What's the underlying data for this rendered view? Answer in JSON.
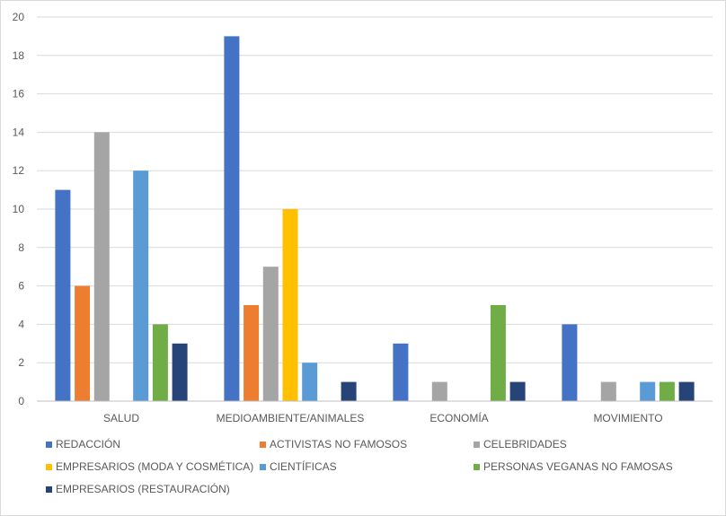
{
  "chart_data": {
    "type": "bar",
    "title": "",
    "xlabel": "",
    "ylabel": "",
    "ylim": [
      0,
      20
    ],
    "yticks": [
      0,
      2,
      4,
      6,
      8,
      10,
      12,
      14,
      16,
      18,
      20
    ],
    "grid": true,
    "legend_position": "bottom",
    "categories": [
      "SALUD",
      "MEDIOAMBIENTE/ANIMALES",
      "ECONOMÍA",
      "MOVIMIENTO"
    ],
    "series": [
      {
        "name": "REDACCIÓN",
        "color": "#4472C4",
        "values": [
          11,
          19,
          3,
          4
        ]
      },
      {
        "name": "ACTIVISTAS NO FAMOSOS",
        "color": "#ED7D31",
        "values": [
          6,
          5,
          0,
          0
        ]
      },
      {
        "name": "CELEBRIDADES",
        "color": "#A5A5A5",
        "values": [
          14,
          7,
          1,
          1
        ]
      },
      {
        "name": "EMPRESARIOS (MODA Y COSMÉTICA)",
        "color": "#FFC000",
        "values": [
          0,
          10,
          0,
          0
        ]
      },
      {
        "name": "CIENTÍFICAS",
        "color": "#5B9BD5",
        "values": [
          12,
          2,
          0,
          1
        ]
      },
      {
        "name": "PERSONAS VEGANAS NO FAMOSAS",
        "color": "#70AD47",
        "values": [
          4,
          0,
          5,
          1
        ]
      },
      {
        "name": "EMPRESARIOS (RESTAURACIÓN)",
        "color": "#264478",
        "values": [
          3,
          1,
          1,
          1
        ]
      }
    ]
  }
}
